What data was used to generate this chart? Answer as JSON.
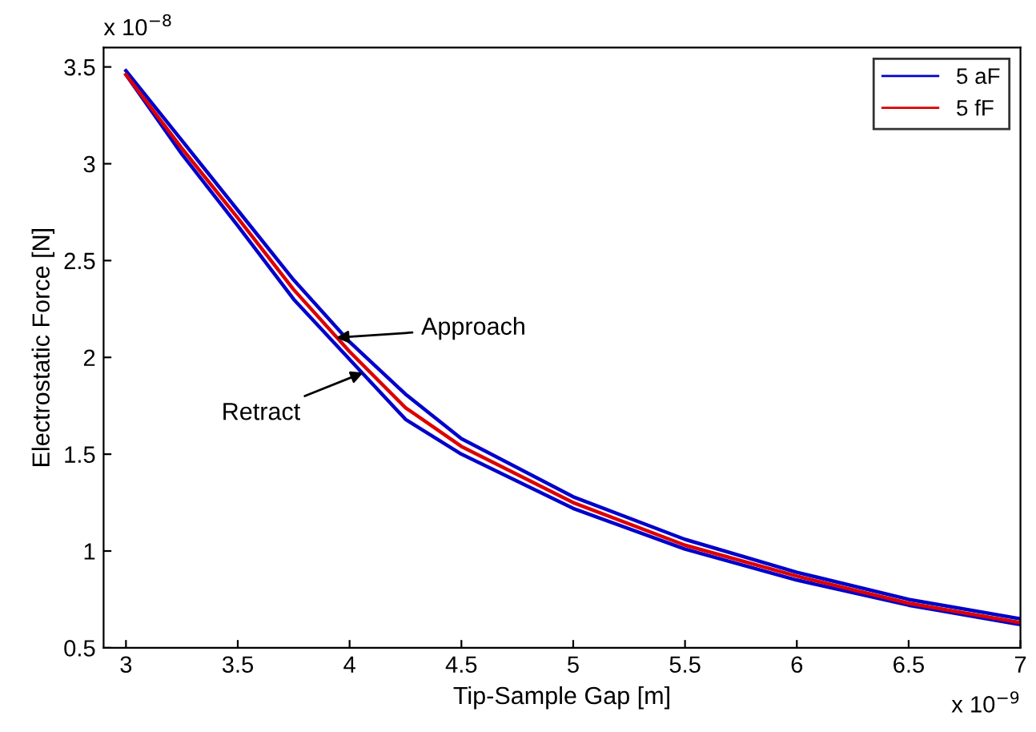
{
  "chart_data": {
    "type": "line",
    "xlabel": "Tip-Sample Gap [m]",
    "ylabel": "Electrostatic Force [N]",
    "xlim": [
      2.9,
      7
    ],
    "ylim": [
      0.5,
      3.6
    ],
    "xticks": [
      3,
      3.5,
      4,
      4.5,
      5,
      5.5,
      6,
      6.5,
      7
    ],
    "yticks": [
      0.5,
      1,
      1.5,
      2,
      2.5,
      3,
      3.5
    ],
    "series": [
      {
        "name": "5 aF",
        "color": "#0000cc",
        "x": [
          3,
          3.25,
          3.5,
          3.75,
          4,
          4.25,
          4.5,
          5,
          5.5,
          6,
          6.5,
          7,
          7,
          6.5,
          6,
          5.5,
          5,
          4.5,
          4.25,
          4,
          3.75,
          3.5,
          3.25,
          3
        ],
        "values": [
          3.46,
          3.05,
          2.68,
          2.3,
          1.99,
          1.68,
          1.5,
          1.22,
          1.01,
          0.85,
          0.72,
          0.62,
          0.65,
          0.75,
          0.89,
          1.06,
          1.28,
          1.58,
          1.81,
          2.08,
          2.4,
          2.76,
          3.12,
          3.48
        ]
      },
      {
        "name": "5 fF",
        "color": "#dd0000",
        "x": [
          3,
          3.25,
          3.5,
          3.75,
          4,
          4.25,
          4.5,
          5,
          5.5,
          6,
          6.5,
          7
        ],
        "values": [
          3.46,
          3.08,
          2.72,
          2.35,
          2.03,
          1.74,
          1.54,
          1.25,
          1.03,
          0.87,
          0.73,
          0.63
        ]
      }
    ],
    "annotations": [
      {
        "text": "Approach",
        "x": 3.92,
        "y": 2.1
      },
      {
        "text": "Retract",
        "x": 4.08,
        "y": 1.93
      },
      "x 10$^{−8}$",
      "x 10$^{−9}$"
    ],
    "legend": "top right",
    "grid": false,
    "marker": "none",
    "line_style": "solid"
  }
}
